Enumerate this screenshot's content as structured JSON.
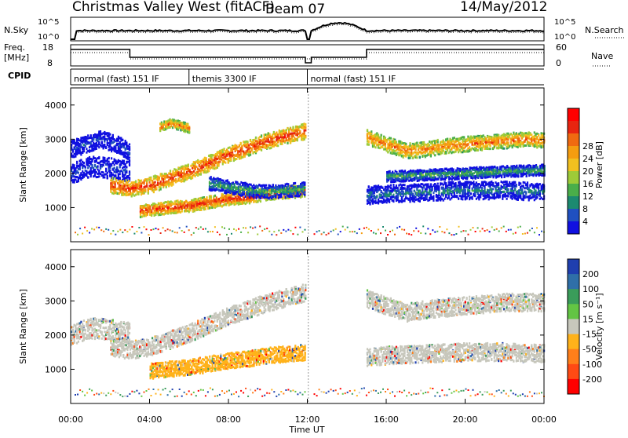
{
  "header": {
    "station": "Christmas Valley West (fitACF)",
    "beam": "Beam 07",
    "date": "14/May/2012"
  },
  "top_panels": {
    "nsky_label": "N.Sky",
    "nsearch_label": "N.Search",
    "nsky_ticks": [
      "10^5",
      "10^0"
    ],
    "nsky_right_ticks": [
      "10^5",
      "10^0"
    ],
    "freq_label_1": "Freq.",
    "freq_label_2": "[MHz]",
    "freq_ticks": [
      "18",
      "8"
    ],
    "nave_label": "Nave",
    "nave_ticks": [
      "60",
      "0"
    ],
    "cpid_label": "CPID",
    "cpid_segments": [
      {
        "label": "normal (fast) 151 IF",
        "start_h": 0,
        "end_h": 6
      },
      {
        "label": "themis 3300 IF",
        "start_h": 6,
        "end_h": 12
      },
      {
        "label": "normal (fast) 151 IF",
        "start_h": 12,
        "end_h": 24
      }
    ]
  },
  "chart_data": [
    {
      "type": "heatmap",
      "name": "power",
      "ylabel": "Slant Range [km]",
      "ylim": [
        0,
        4500
      ],
      "yticks": [
        1000,
        2000,
        3000,
        4000
      ],
      "colorbar_label": "Power [dB]",
      "colorbar_ticks": [
        "4",
        "8",
        "12",
        "16",
        "20",
        "24",
        "28"
      ],
      "colorbar_colors": [
        "#1010e0",
        "#2050c0",
        "#1c8a70",
        "#4aae4a",
        "#9ecb38",
        "#f2c020",
        "#f59d10",
        "#f06a10",
        "#e82510",
        "#ff0000"
      ],
      "bands": [
        {
          "x": [
            0.0,
            1.0,
            2.0,
            3.0
          ],
          "y": [
            2000,
            2200,
            2150,
            2050
          ],
          "w": 300,
          "level": 1
        },
        {
          "x": [
            0.0,
            1.5,
            2.5,
            3.0
          ],
          "y": [
            2700,
            3000,
            2800,
            2600
          ],
          "w": 250,
          "level": 1
        },
        {
          "x": [
            2.0,
            3.0,
            4.0,
            5.0,
            6.0,
            7.0,
            8.0,
            9.0,
            10.0,
            11.0,
            12.0
          ],
          "y": [
            1650,
            1550,
            1650,
            1850,
            2050,
            2300,
            2550,
            2750,
            2950,
            3100,
            3250
          ],
          "w": 230,
          "level": 8
        },
        {
          "x": [
            3.5,
            5.0,
            6.0,
            7.0,
            8.0,
            9.0,
            10.0,
            11.0,
            12.0
          ],
          "y": [
            900,
            1000,
            1050,
            1150,
            1250,
            1300,
            1400,
            1450,
            1500
          ],
          "w": 180,
          "level": 8
        },
        {
          "x": [
            4.5,
            5.0,
            5.5,
            6.0
          ],
          "y": [
            3350,
            3450,
            3400,
            3300
          ],
          "w": 130,
          "level": 7
        },
        {
          "x": [
            7.0,
            8.0,
            9.0,
            10.0,
            11.0,
            12.0
          ],
          "y": [
            1700,
            1600,
            1500,
            1450,
            1500,
            1550
          ],
          "w": 200,
          "level": 3
        },
        {
          "x": [
            15.0,
            16.0,
            17.0,
            18.0,
            19.0,
            20.0,
            21.0,
            22.0,
            23.0,
            24.0
          ],
          "y": [
            3050,
            2850,
            2650,
            2700,
            2800,
            2850,
            2900,
            2950,
            3000,
            2950
          ],
          "w": 220,
          "level": 7
        },
        {
          "x": [
            15.0,
            16.0,
            18.0,
            20.0,
            22.0,
            24.0
          ],
          "y": [
            1350,
            1400,
            1450,
            1500,
            1500,
            1450
          ],
          "w": 260,
          "level": 2
        },
        {
          "x": [
            16.0,
            18.0,
            20.0,
            22.0,
            24.0
          ],
          "y": [
            1900,
            1950,
            2000,
            2050,
            2100
          ],
          "w": 160,
          "level": 3
        }
      ]
    },
    {
      "type": "heatmap",
      "name": "velocity",
      "ylabel": "Slant Range [km]",
      "ylim": [
        0,
        4500
      ],
      "yticks": [
        1000,
        2000,
        3000,
        4000
      ],
      "colorbar_label": "Velocity [m s⁻¹]",
      "colorbar_ticks": [
        "200",
        "100",
        "50",
        "15",
        "-15",
        "-50",
        "-100",
        "-200"
      ],
      "colorbar_colors": [
        "#1f3faf",
        "#2f6fa8",
        "#3a9c5a",
        "#63c544",
        "#c7c7bc",
        "#ffb21a",
        "#ff7f1a",
        "#ff4a14",
        "#ff0000"
      ],
      "bands": [
        {
          "x": [
            0.0,
            1.0,
            2.0,
            3.0
          ],
          "y": [
            2000,
            2200,
            2150,
            2050
          ],
          "w": 300,
          "level": 4
        },
        {
          "x": [
            2.0,
            3.0,
            4.0,
            5.0,
            6.0,
            7.0,
            8.0,
            9.0,
            10.0,
            11.0,
            12.0
          ],
          "y": [
            1650,
            1550,
            1650,
            1850,
            2050,
            2300,
            2550,
            2750,
            2950,
            3100,
            3250
          ],
          "w": 260,
          "level": 4
        },
        {
          "x": [
            4.0,
            5.0,
            6.0,
            7.0,
            8.0,
            9.0,
            10.0,
            11.0,
            12.0
          ],
          "y": [
            950,
            1000,
            1050,
            1150,
            1250,
            1300,
            1400,
            1450,
            1500
          ],
          "w": 230,
          "level": 5
        },
        {
          "x": [
            15.0,
            16.0,
            17.0,
            18.0,
            20.0,
            22.0,
            24.0
          ],
          "y": [
            3050,
            2850,
            2650,
            2750,
            2850,
            2950,
            2950
          ],
          "w": 260,
          "level": 4
        },
        {
          "x": [
            15.0,
            16.0,
            18.0,
            20.0,
            22.0,
            24.0
          ],
          "y": [
            1350,
            1400,
            1450,
            1500,
            1500,
            1450
          ],
          "w": 260,
          "level": 4
        }
      ]
    }
  ],
  "x_axis": {
    "ticks": [
      "00:00",
      "04:00",
      "08:00",
      "12:00",
      "16:00",
      "20:00",
      "00:00"
    ],
    "label": "Time UT"
  }
}
